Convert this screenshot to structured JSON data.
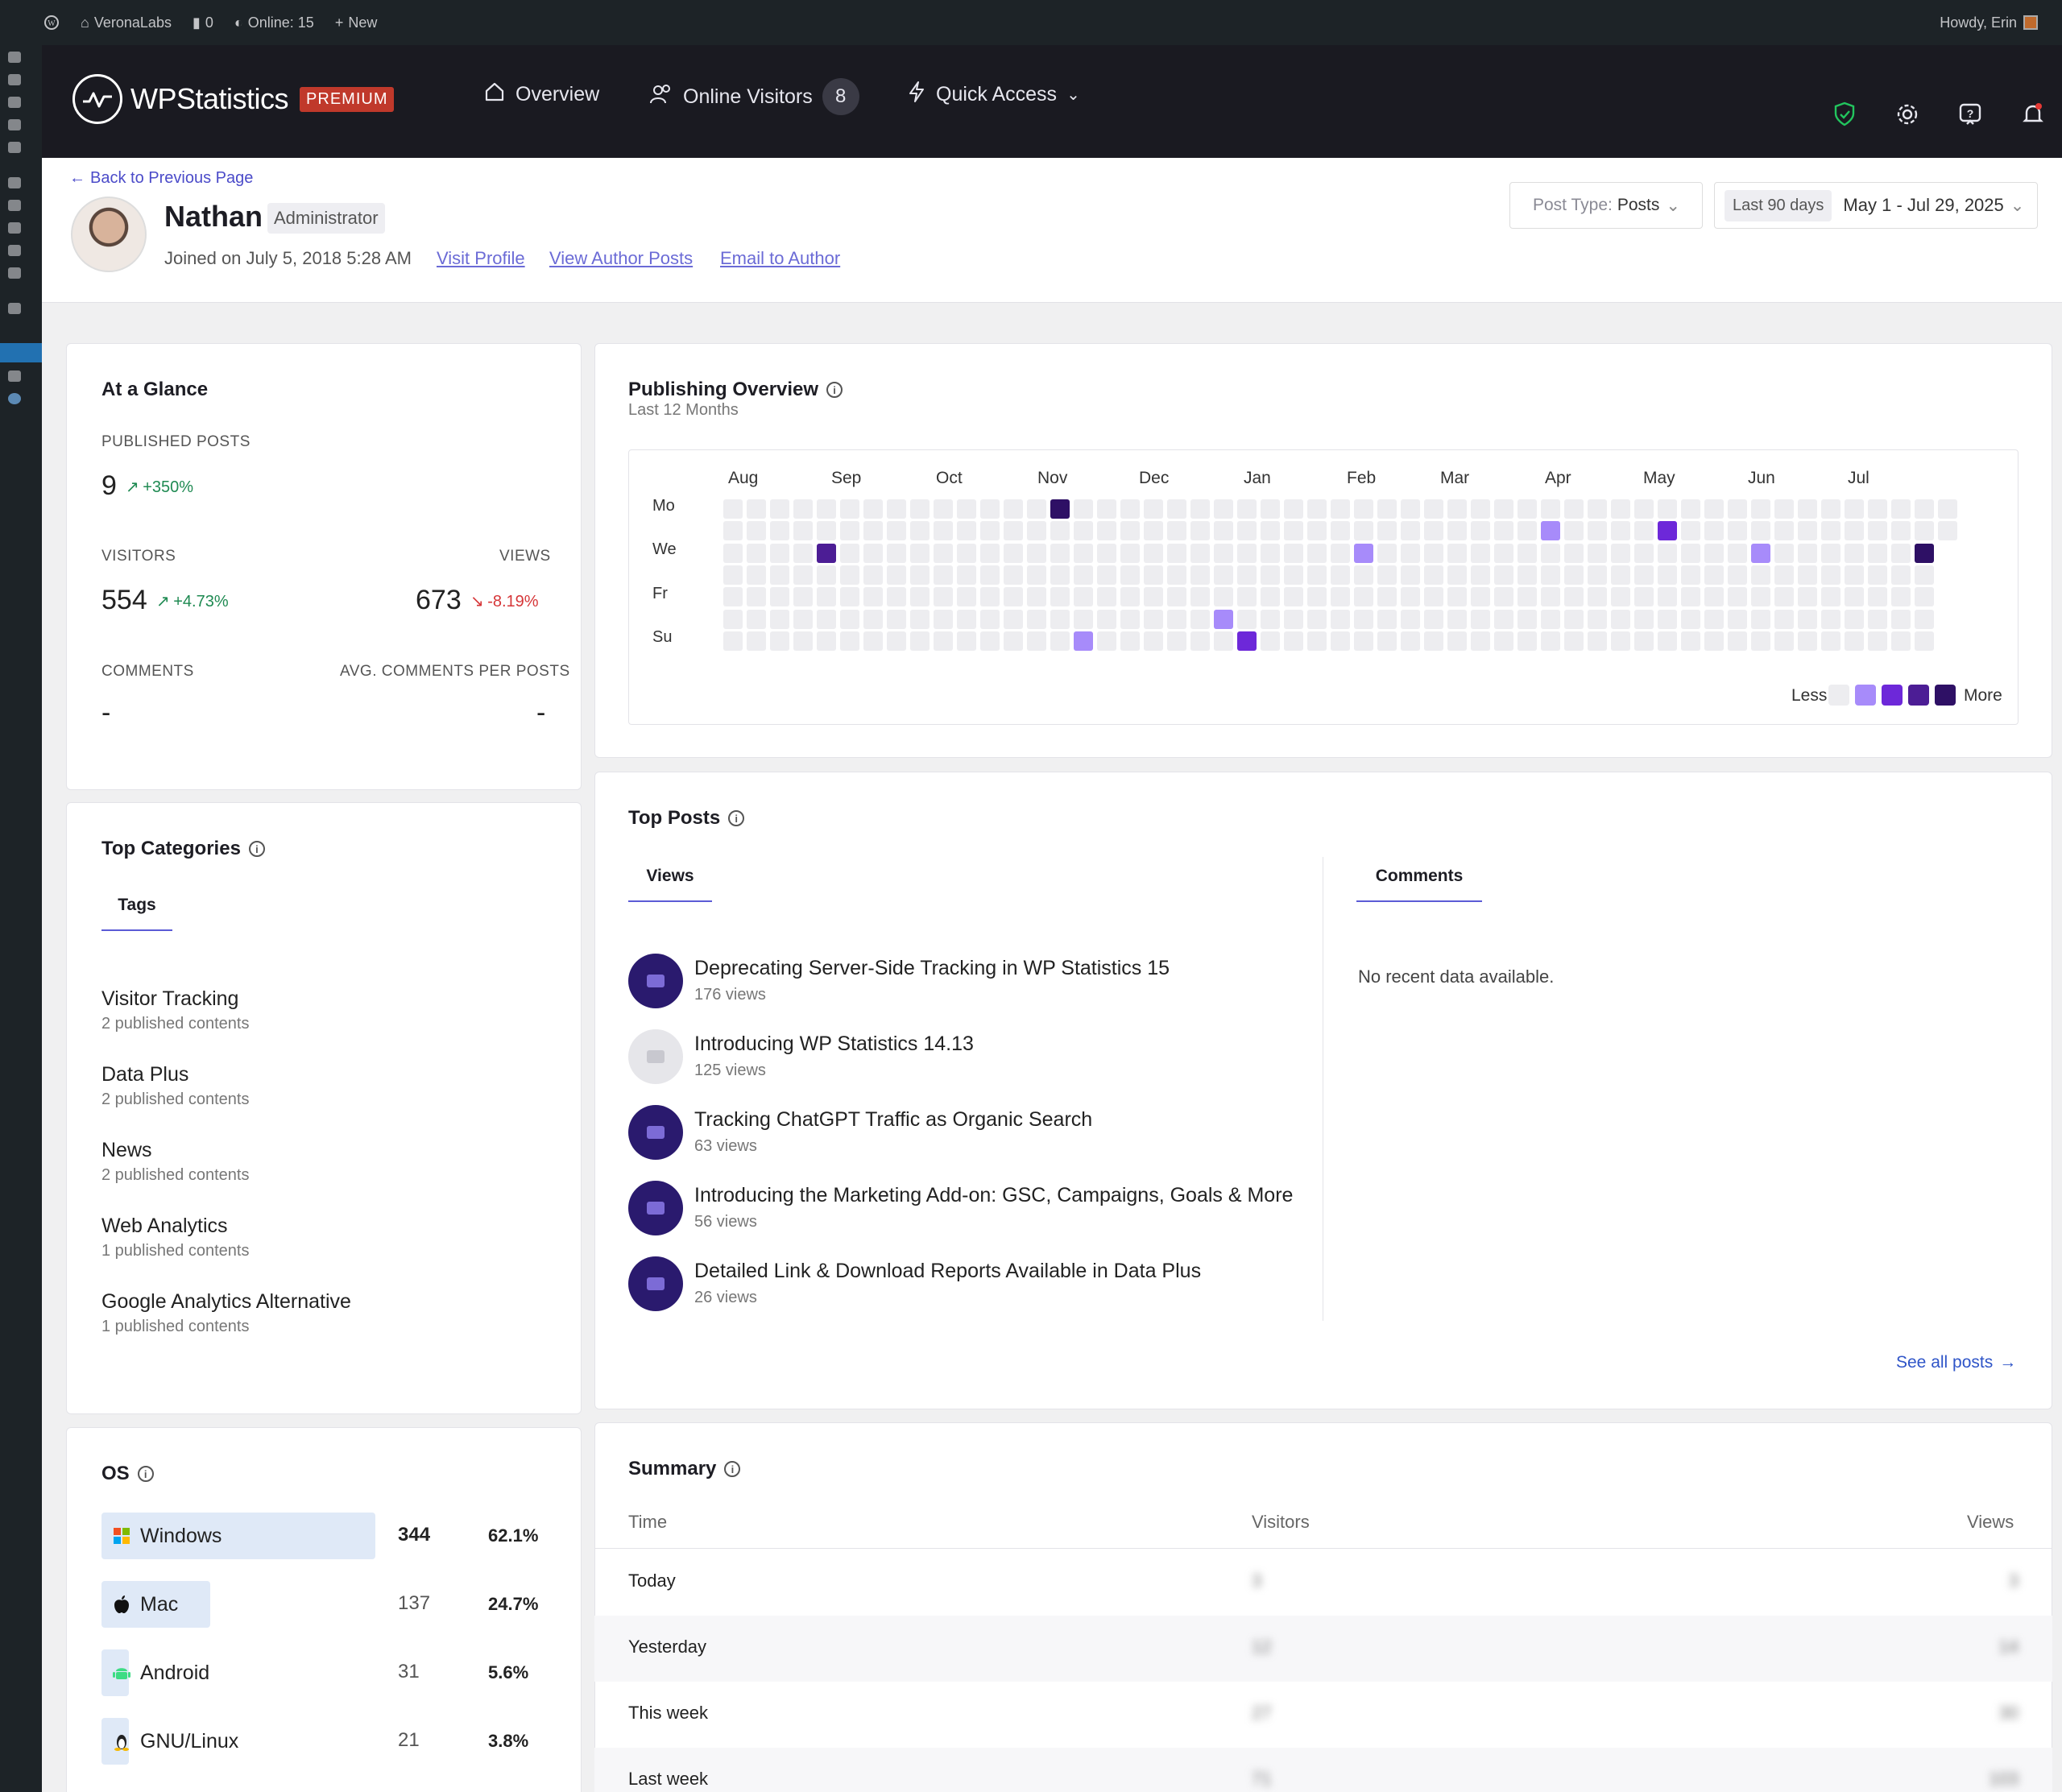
{
  "admin_bar": {
    "site_name": "VeronaLabs",
    "comments_count": "0",
    "online": "Online: 15",
    "new_label": "New",
    "howdy": "Howdy, Erin"
  },
  "header": {
    "logo_text": "WPStatistics",
    "premium": "PREMIUM",
    "nav": {
      "overview": "Overview",
      "online_visitors": "Online Visitors",
      "online_count": "8",
      "quick_access": "Quick Access"
    }
  },
  "author": {
    "back_link": "Back to Previous Page",
    "name": "Nathan",
    "role": "Administrator",
    "joined": "Joined on July 5, 2018 5:28 AM",
    "links": {
      "visit_profile": "Visit Profile",
      "view_posts": "View Author Posts",
      "email": "Email to Author"
    },
    "filters": {
      "post_type_label": "Post Type:",
      "post_type_value": "Posts",
      "range_pill": "Last 90 days",
      "date_range": "May 1 - Jul 29, 2025"
    }
  },
  "glance": {
    "title": "At a Glance",
    "published_label": "PUBLISHED POSTS",
    "published_value": "9",
    "published_change": "+350%",
    "visitors_label": "VISITORS",
    "visitors_value": "554",
    "visitors_change": "+4.73%",
    "views_label": "VIEWS",
    "views_value": "673",
    "views_change": "-8.19%",
    "comments_label": "COMMENTS",
    "comments_value": "-",
    "avg_label": "AVG. COMMENTS PER POSTS",
    "avg_value": "-"
  },
  "publishing": {
    "title": "Publishing Overview",
    "subtitle": "Last 12 Months",
    "months": [
      "Aug",
      "Sep",
      "Oct",
      "Nov",
      "Dec",
      "Jan",
      "Feb",
      "Mar",
      "Apr",
      "May",
      "Jun",
      "Jul"
    ],
    "days": [
      "Mo",
      "We",
      "Fr",
      "Su"
    ],
    "legend_less": "Less",
    "legend_more": "More",
    "colors": {
      "empty": "#ededf0",
      "l1": "#a78bfa",
      "l2": "#6d28d9",
      "l3": "#4c1d95",
      "l4": "#2e1065"
    },
    "active_cells": [
      {
        "week": 14,
        "day": 0,
        "level": 4
      },
      {
        "week": 4,
        "day": 2,
        "level": 3
      },
      {
        "week": 15,
        "day": 6,
        "level": 1
      },
      {
        "week": 21,
        "day": 5,
        "level": 1
      },
      {
        "week": 22,
        "day": 6,
        "level": 2
      },
      {
        "week": 27,
        "day": 2,
        "level": 1
      },
      {
        "week": 35,
        "day": 1,
        "level": 1
      },
      {
        "week": 40,
        "day": 1,
        "level": 2
      },
      {
        "week": 44,
        "day": 2,
        "level": 1
      },
      {
        "week": 51,
        "day": 2,
        "level": 4
      }
    ]
  },
  "top_categories": {
    "title": "Top Categories",
    "tab": "Tags",
    "items": [
      {
        "name": "Visitor Tracking",
        "count": "2 published contents"
      },
      {
        "name": "Data Plus",
        "count": "2 published contents"
      },
      {
        "name": "News",
        "count": "2 published contents"
      },
      {
        "name": "Web Analytics",
        "count": "1 published contents"
      },
      {
        "name": "Google Analytics Alternative",
        "count": "1 published contents"
      }
    ]
  },
  "top_posts": {
    "title": "Top Posts",
    "tab_views": "Views",
    "tab_comments": "Comments",
    "no_data": "No recent data available.",
    "see_all": "See all posts",
    "posts": [
      {
        "title": "Deprecating Server-Side Tracking in WP Statistics 15",
        "views": "176 views"
      },
      {
        "title": "Introducing WP Statistics 14.13",
        "views": "125 views"
      },
      {
        "title": "Tracking ChatGPT Traffic as Organic Search",
        "views": "63 views"
      },
      {
        "title": "Introducing the Marketing Add-on: GSC, Campaigns, Goals & More",
        "views": "56 views"
      },
      {
        "title": "Detailed Link & Download Reports Available in Data Plus",
        "views": "26 views"
      }
    ]
  },
  "os": {
    "title": "OS",
    "rows": [
      {
        "name": "Windows",
        "count": "344",
        "pct": "62.1%",
        "share": 0.621
      },
      {
        "name": "Mac",
        "count": "137",
        "pct": "24.7%",
        "share": 0.247
      },
      {
        "name": "Android",
        "count": "31",
        "pct": "5.6%",
        "share": 0.056
      },
      {
        "name": "GNU/Linux",
        "count": "21",
        "pct": "3.8%",
        "share": 0.038
      }
    ]
  },
  "summary": {
    "title": "Summary",
    "col_time": "Time",
    "col_visitors": "Visitors",
    "col_views": "Views",
    "rows": [
      {
        "label": "Today",
        "visitors": "3",
        "views": "3"
      },
      {
        "label": "Yesterday",
        "visitors": "12",
        "views": "14"
      },
      {
        "label": "This week",
        "visitors": "27",
        "views": "30"
      },
      {
        "label": "Last week",
        "visitors": "71",
        "views": "103"
      }
    ]
  }
}
